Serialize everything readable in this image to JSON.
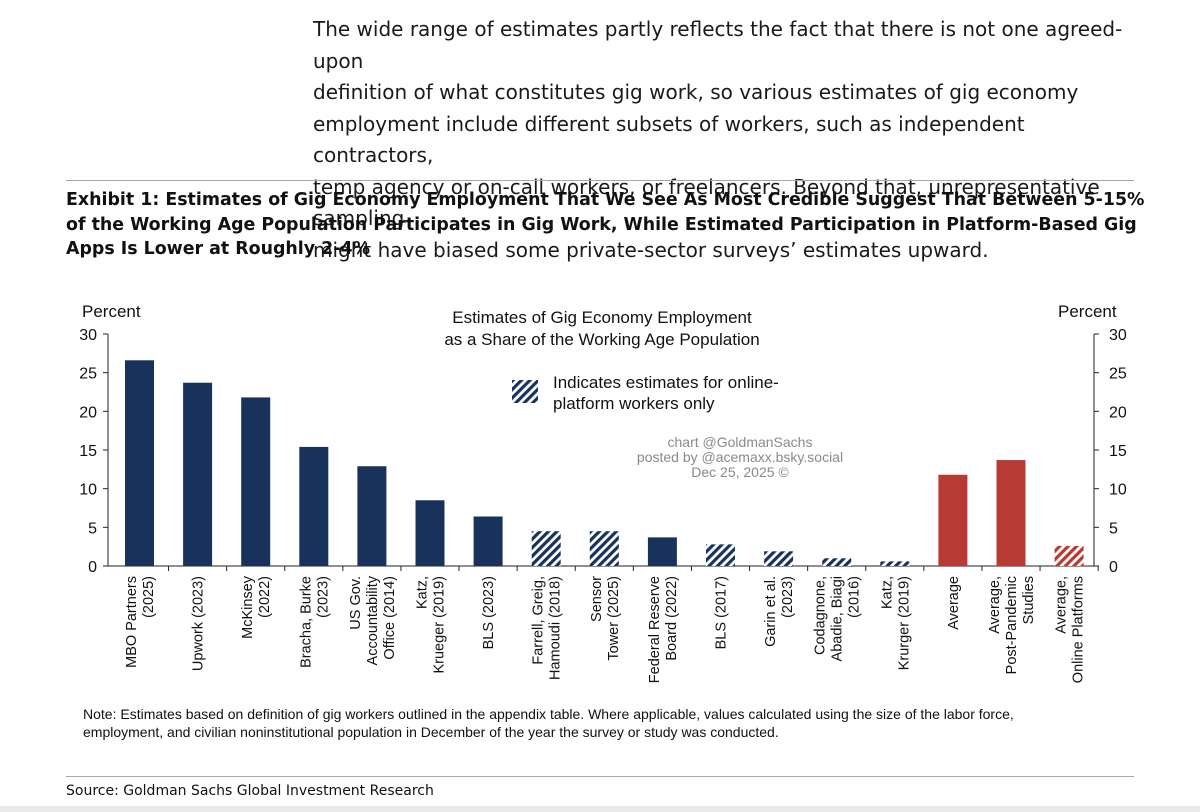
{
  "intro_paragraph": "The wide range of estimates partly reflects the fact that there is not one agreed-upon\ndefinition of what constitutes gig work, so various estimates of gig economy\nemployment include different subsets of workers, such as independent contractors,\ntemp agency or on-call workers, or freelancers. Beyond that, unrepresentative sampling\nmight have biased some private-sector surveys’ estimates upward.",
  "exhibit_title": "Exhibit 1: Estimates of Gig Economy Employment That We See As Most Credible Suggest That Between 5-15% of the Working Age Population Participates in Gig Work, While Estimated Participation in Platform-Based Gig Apps Is Lower at Roughly 2-4%",
  "note": "Note: Estimates based on definition of gig workers outlined in the appendix table. Where applicable, values calculated using the size of the labor force,\nemployment, and civilian noninstitutional population in December of the year the survey or study was conducted.",
  "source": "Source: Goldman Sachs Global Investment Research",
  "chart_data": {
    "type": "bar",
    "title": [
      "Estimates of Gig Economy Employment",
      "as a Share of the Working Age Population"
    ],
    "ylabel_left": "Percent",
    "ylabel_right": "Percent",
    "ylim": [
      0,
      30
    ],
    "yticks": [
      0,
      5,
      10,
      15,
      20,
      25,
      30
    ],
    "grid": false,
    "legend": {
      "label": [
        "Indicates estimates for online-",
        "platform workers only"
      ],
      "style": "hatched",
      "placement": "top-center"
    },
    "watermark": [
      "chart @GoldmanSachs",
      "posted by @acemaxx.bsky.social",
      "Dec 25, 2025 ©"
    ],
    "colors": {
      "navy": "#18325c",
      "red": "#b83a35"
    },
    "categories": [
      [
        "MBO Partners",
        "(2025)"
      ],
      [
        "Upwork (2023)"
      ],
      [
        "McKinsey",
        "(2022)"
      ],
      [
        "Bracha, Burke",
        "(2023)"
      ],
      [
        "US Gov.",
        "Accountability",
        "Office (2014)"
      ],
      [
        "Katz,",
        "Krueger (2019)"
      ],
      [
        "BLS (2023)"
      ],
      [
        "Farrell, Greig,",
        "Hamoudi (2018)"
      ],
      [
        "Sensor",
        "Tower (2025)"
      ],
      [
        "Federal Reserve",
        "Board (2022)"
      ],
      [
        "BLS (2017)"
      ],
      [
        "Garin et al.",
        "(2023)"
      ],
      [
        "Codagnone,",
        "Abadie, Biagi",
        "(2016)"
      ],
      [
        "Katz,",
        "Krurger (2019)"
      ],
      [
        "Average"
      ],
      [
        "Average,",
        "Post-Pandemic",
        "Studies"
      ],
      [
        "Average,",
        "Online Platforms"
      ]
    ],
    "values": [
      26.6,
      23.7,
      21.8,
      15.4,
      12.9,
      8.5,
      6.4,
      4.5,
      4.5,
      3.7,
      2.8,
      1.9,
      1.0,
      0.6,
      11.8,
      13.7,
      2.6
    ],
    "bar_color": [
      "navy",
      "navy",
      "navy",
      "navy",
      "navy",
      "navy",
      "navy",
      "navy",
      "navy",
      "navy",
      "navy",
      "navy",
      "navy",
      "navy",
      "red",
      "red",
      "red"
    ],
    "hatched": [
      false,
      false,
      false,
      false,
      false,
      false,
      false,
      true,
      true,
      false,
      true,
      true,
      true,
      true,
      false,
      false,
      true
    ]
  }
}
